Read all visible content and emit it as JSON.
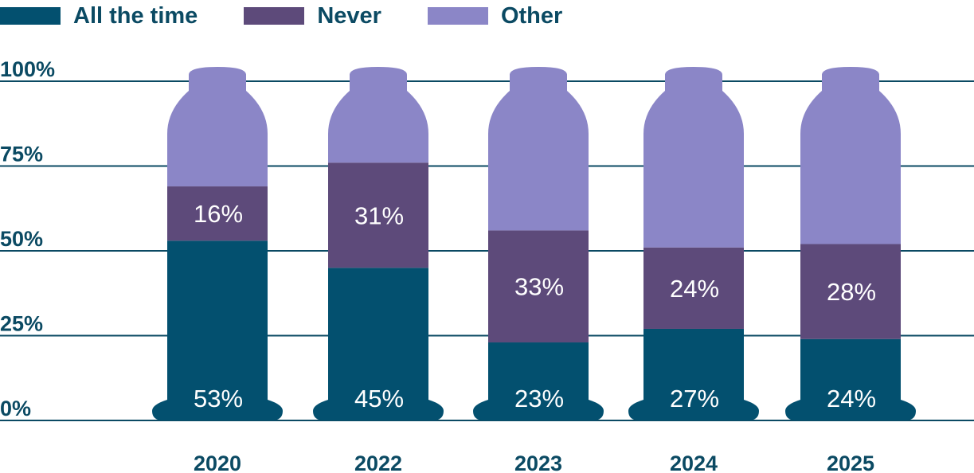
{
  "chart_data": {
    "type": "bar",
    "stacked": true,
    "categories": [
      "2020",
      "2022",
      "2023",
      "2024",
      "2025"
    ],
    "series": [
      {
        "name": "All the time",
        "values": [
          53,
          45,
          23,
          27,
          24
        ],
        "labels": [
          "53%",
          "45%",
          "23%",
          "27%",
          "24%"
        ],
        "color": "#03506f"
      },
      {
        "name": "Never",
        "values": [
          16,
          31,
          33,
          24,
          28
        ],
        "labels": [
          "16%",
          "31%",
          "33%",
          "24%",
          "28%"
        ],
        "color": "#5d4a7a"
      },
      {
        "name": "Other",
        "values": [
          31,
          24,
          44,
          49,
          48
        ],
        "color": "#8b86c7"
      }
    ],
    "yticks": [
      "0%",
      "25%",
      "50%",
      "75%",
      "100%"
    ],
    "ylim": [
      0,
      100
    ],
    "grid": true,
    "legend_position": "top-left",
    "colors": {
      "text": "#0b4a63",
      "grid": "#0b4a63",
      "data_label": "#ffffff"
    }
  }
}
